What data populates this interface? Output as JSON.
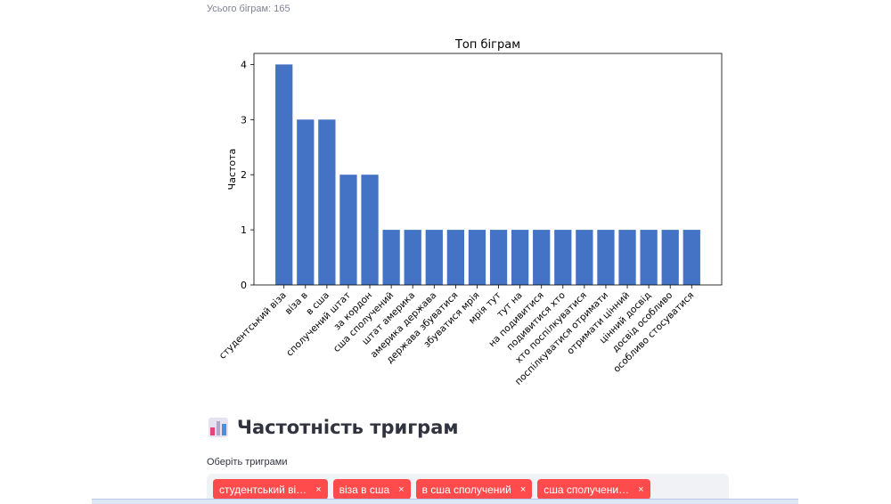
{
  "caption": "Усього біграм: 165",
  "chart_data": {
    "type": "bar",
    "title": "Топ біграм",
    "xlabel": "",
    "ylabel": "Частота",
    "ylim": [
      0,
      4.2
    ],
    "yticks": [
      0,
      1,
      2,
      3,
      4
    ],
    "grid": false,
    "bar_color": "#4472c4",
    "categories": [
      "студентський віза",
      "віза в",
      "в сша",
      "сполучений штат",
      "за кордон",
      "сша сполучений",
      "штат америка",
      "америка держава",
      "держава збуватися",
      "збуватися мрія",
      "мрія тут",
      "тут на",
      "на подивитися",
      "подивитися хто",
      "хто поспілкуватися",
      "поспілкуватися отримати",
      "отримати цінний",
      "цінний досвід",
      "досвід особливо",
      "особливо стосуватися"
    ],
    "values": [
      4,
      3,
      3,
      2,
      2,
      1,
      1,
      1,
      1,
      1,
      1,
      1,
      1,
      1,
      1,
      1,
      1,
      1,
      1,
      1
    ]
  },
  "section": {
    "title": "Частотність триграм",
    "icon": "bar-chart-icon"
  },
  "multiselect": {
    "label": "Оберіть триграми",
    "tags": [
      "студентський ві…",
      "віза в сша",
      "в сша сполучений",
      "сша сполучени…"
    ],
    "remove_glyph": "×",
    "tag_color": "#ff4b4b"
  }
}
